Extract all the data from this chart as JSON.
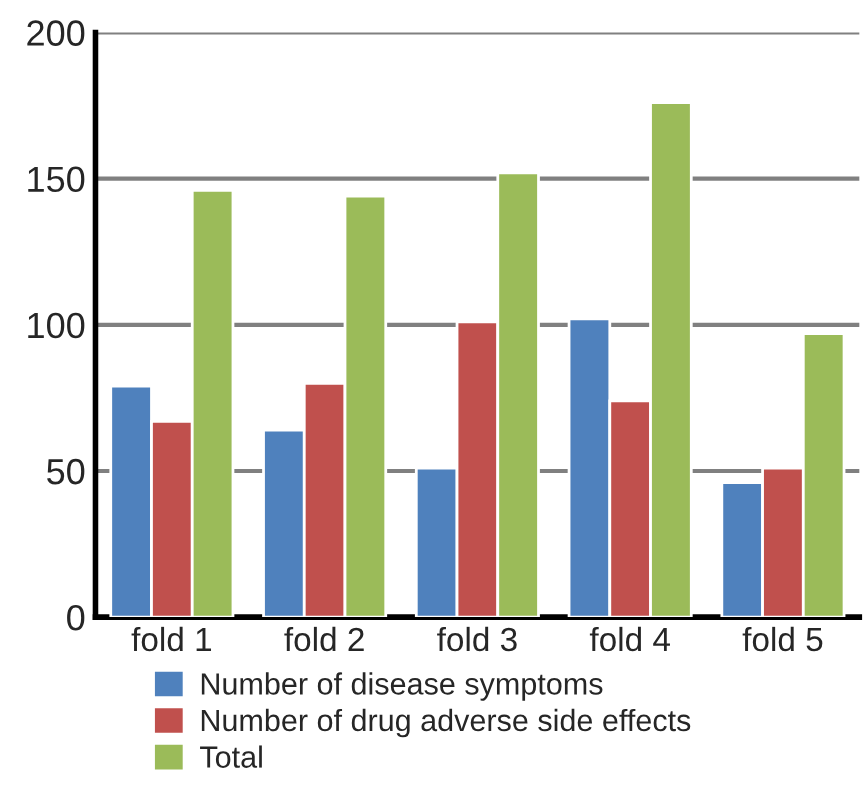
{
  "chart_data": {
    "type": "bar",
    "categories": [
      "fold 1",
      "fold 2",
      "fold 3",
      "fold 4",
      "fold 5"
    ],
    "series": [
      {
        "name": "Number of disease symptoms",
        "color": "#4f81bd",
        "values": [
          79,
          64,
          51,
          102,
          46
        ]
      },
      {
        "name": "Number of drug adverse side effects",
        "color": "#c0504d",
        "values": [
          67,
          80,
          101,
          74,
          51
        ]
      },
      {
        "name": "Total",
        "color": "#9bbb59",
        "values": [
          146,
          144,
          152,
          176,
          97
        ]
      }
    ],
    "ylim": [
      0,
      200
    ],
    "yticks": [
      0,
      50,
      100,
      150,
      200
    ],
    "grid": "y",
    "legend": "bottom"
  }
}
